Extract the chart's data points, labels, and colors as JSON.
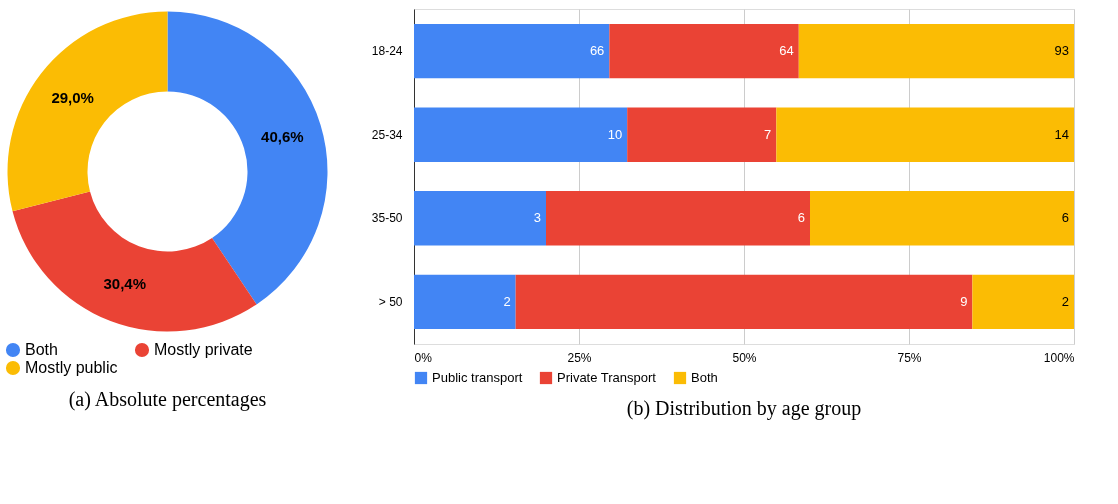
{
  "chart_data": [
    {
      "type": "donut",
      "title": "(a) Absolute percentages",
      "categories": [
        "Both",
        "Mostly private",
        "Mostly public"
      ],
      "values": [
        40.6,
        30.4,
        29.0
      ],
      "colors": [
        "#4285f4",
        "#ea4335",
        "#fbbc04"
      ],
      "value_labels": [
        "40,6%",
        "30,4%",
        "29,0%"
      ],
      "legend": "bottom"
    },
    {
      "type": "bar",
      "title": "(b) Distribution by age group",
      "orientation": "horizontal",
      "stacked": true,
      "categories": [
        "18-24",
        "25-34",
        "35-50",
        "> 50"
      ],
      "series": [
        {
          "name": "Public transport",
          "color": "#4285f4",
          "values": [
            29.6,
            32.3,
            20,
            15.4
          ]
        },
        {
          "name": "Private Transport",
          "color": "#ea4335",
          "values": [
            28.7,
            22.6,
            40,
            69.2
          ]
        },
        {
          "name": "Both",
          "color": "#fbbc04",
          "values": [
            41.7,
            45.1,
            40,
            15.4
          ]
        }
      ],
      "annotations": [
        {
          "text": "66",
          "x": 29.6,
          "y": "18-24"
        },
        {
          "text": "64",
          "x": 58.3,
          "y": "18-24"
        },
        {
          "text": "93",
          "x": 100,
          "y": "18-24"
        },
        {
          "text": "10",
          "x": 32.3,
          "y": "25-34"
        },
        {
          "text": "7",
          "x": 54.9,
          "y": "25-34"
        },
        {
          "text": "14",
          "x": 100,
          "y": "25-34"
        },
        {
          "text": "3",
          "x": 20,
          "y": "35-50"
        },
        {
          "text": "6",
          "x": 60,
          "y": "35-50"
        },
        {
          "text": "6",
          "x": 100,
          "y": "35-50"
        },
        {
          "text": "2",
          "x": 15.4,
          "y": "> 50"
        },
        {
          "text": "9",
          "x": 84.6,
          "y": "> 50"
        },
        {
          "text": "2",
          "x": 100,
          "y": "> 50"
        }
      ],
      "xlim": [
        0,
        100
      ],
      "xticks": [
        {
          "value": 0,
          "label": "0%"
        },
        {
          "value": 25,
          "label": "25%"
        },
        {
          "value": 50,
          "label": "50%"
        },
        {
          "value": 75,
          "label": "75%"
        },
        {
          "value": 100,
          "label": "100%"
        }
      ],
      "grid": "x",
      "legend": "bottom"
    }
  ]
}
